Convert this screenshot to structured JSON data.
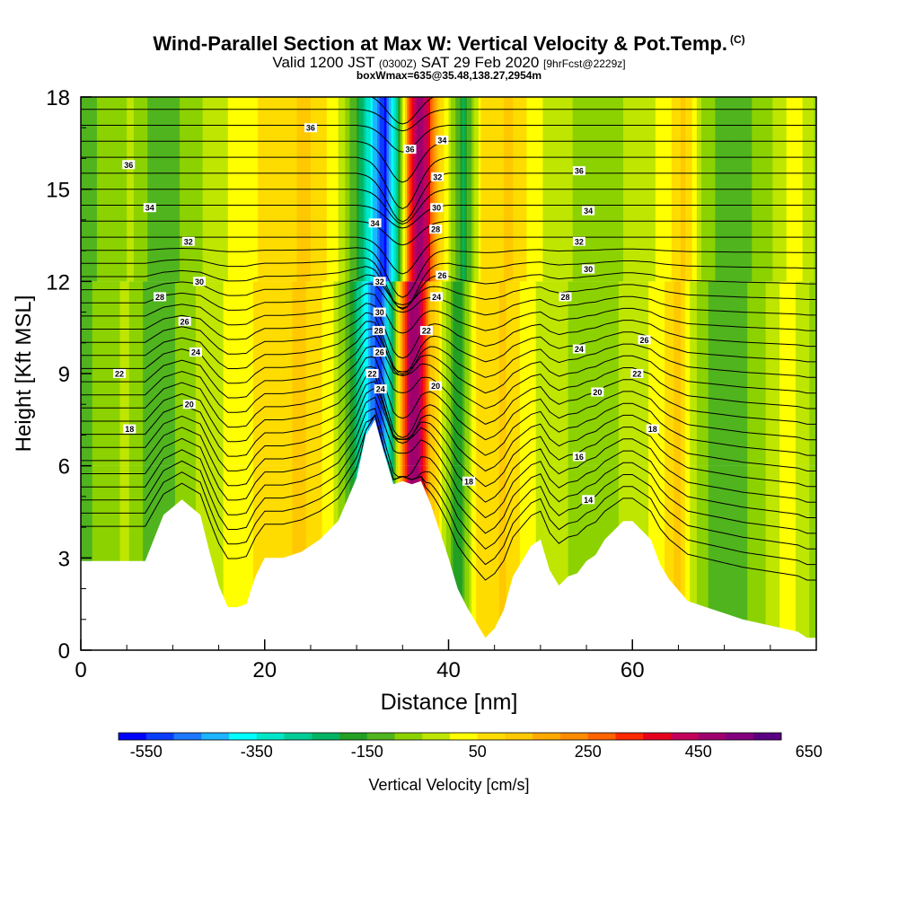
{
  "header": {
    "title": "Wind-Parallel Section at Max W: Vertical Velocity & Pot.Temp.",
    "title_tag": "(C)",
    "valid_prefix": "Valid 1200 JST",
    "valid_utc": "(0300Z)",
    "valid_date": "SAT 29 Feb 2020",
    "forecast": "[9hrFcst@2229z]",
    "box_info": "boxWmax=635@35.48,138.27,2954m"
  },
  "chart_data": {
    "type": "heatmap",
    "xlabel": "Distance [nm]",
    "ylabel": "Height [Kft MSL]",
    "xlim": [
      0,
      80
    ],
    "ylim": [
      0,
      18
    ],
    "x_ticks": [
      "0",
      "20",
      "40",
      "60"
    ],
    "y_ticks": [
      "0",
      "3",
      "6",
      "9",
      "12",
      "15",
      "18"
    ],
    "colorbar": {
      "label": "Vertical Velocity [cm/s]",
      "tick_labels": [
        "-550",
        "-350",
        "-150",
        "50",
        "250",
        "450",
        "650"
      ],
      "colors": [
        "#0000ff",
        "#0a3cff",
        "#1e78ff",
        "#1eb4ff",
        "#00ffff",
        "#00e6c8",
        "#00cd96",
        "#00b464",
        "#23a023",
        "#50b41e",
        "#8cd200",
        "#bee600",
        "#ffff00",
        "#ffdc00",
        "#ffc800",
        "#ffaa00",
        "#ff8c00",
        "#ff6400",
        "#ff2800",
        "#e6001e",
        "#c3005a",
        "#a0006e",
        "#82007d",
        "#5a0082"
      ]
    },
    "terrain_profile": {
      "distance_nm": [
        0,
        7,
        9,
        11,
        13,
        14,
        15,
        16,
        17,
        18,
        19,
        20,
        22,
        24,
        26,
        28,
        30,
        31,
        32,
        33,
        34,
        35,
        36,
        37,
        38,
        39,
        40,
        41,
        42,
        43,
        44,
        45,
        46,
        47,
        48,
        49,
        50,
        51,
        52,
        53,
        54,
        55,
        56,
        57,
        58,
        59,
        60,
        61,
        62,
        63,
        64,
        66,
        68,
        70,
        72,
        75,
        78,
        79,
        80
      ],
      "height_kft": [
        2.9,
        2.9,
        4.4,
        4.9,
        4.4,
        3.2,
        2.1,
        1.4,
        1.4,
        1.5,
        2.4,
        3.0,
        3.0,
        3.2,
        3.6,
        4.2,
        5.6,
        7.0,
        7.5,
        6.4,
        5.4,
        5.5,
        5.4,
        5.5,
        4.8,
        3.9,
        3.0,
        2.0,
        1.4,
        0.9,
        0.4,
        0.7,
        1.3,
        2.4,
        2.9,
        3.4,
        3.6,
        2.6,
        2.1,
        2.4,
        2.5,
        2.9,
        3.1,
        3.6,
        3.9,
        4.2,
        4.2,
        3.9,
        3.6,
        2.8,
        2.3,
        1.6,
        1.4,
        1.2,
        1.0,
        0.8,
        0.6,
        0.4,
        0.4
      ]
    },
    "velocity_bands": [
      {
        "x": 0,
        "w": -120
      },
      {
        "x": 5,
        "w": -40
      },
      {
        "x": 8,
        "w": -150
      },
      {
        "x": 12,
        "w": -60
      },
      {
        "x": 16,
        "w": 10
      },
      {
        "x": 20,
        "w": 70
      },
      {
        "x": 24,
        "w": 110
      },
      {
        "x": 27,
        "w": 30
      },
      {
        "x": 29.5,
        "w": -160
      },
      {
        "x": 31,
        "w": -380
      },
      {
        "x": 32.5,
        "w": -560
      },
      {
        "x": 34,
        "w": -200
      },
      {
        "x": 35,
        "w": 250
      },
      {
        "x": 36,
        "w": 500
      },
      {
        "x": 37,
        "w": 430
      },
      {
        "x": 38,
        "w": 160
      },
      {
        "x": 39.5,
        "w": -20
      },
      {
        "x": 41,
        "w": -210
      },
      {
        "x": 43,
        "w": 60
      },
      {
        "x": 46,
        "w": 110
      },
      {
        "x": 49,
        "w": 10
      },
      {
        "x": 52,
        "w": -40
      },
      {
        "x": 56,
        "w": -80
      },
      {
        "x": 60,
        "w": -30
      },
      {
        "x": 63,
        "w": 20
      },
      {
        "x": 65,
        "w": 120
      },
      {
        "x": 67,
        "w": -60
      },
      {
        "x": 70,
        "w": -150
      },
      {
        "x": 74,
        "w": -70
      },
      {
        "x": 77,
        "w": 30
      },
      {
        "x": 80,
        "w": -80
      }
    ],
    "isentrope_labels": [
      {
        "x": 25,
        "y": 17.0,
        "t": "36"
      },
      {
        "x": 5.2,
        "y": 15.8,
        "t": "36"
      },
      {
        "x": 7.5,
        "y": 14.4,
        "t": "34"
      },
      {
        "x": 11.7,
        "y": 13.3,
        "t": "32"
      },
      {
        "x": 12.9,
        "y": 12.0,
        "t": "30"
      },
      {
        "x": 8.6,
        "y": 11.5,
        "t": "28"
      },
      {
        "x": 11.3,
        "y": 10.7,
        "t": "26"
      },
      {
        "x": 12.5,
        "y": 9.7,
        "t": "24"
      },
      {
        "x": 4.2,
        "y": 9.0,
        "t": "22"
      },
      {
        "x": 11.8,
        "y": 8.0,
        "t": "20"
      },
      {
        "x": 5.3,
        "y": 7.2,
        "t": "18"
      },
      {
        "x": 32,
        "y": 13.9,
        "t": "34"
      },
      {
        "x": 32.5,
        "y": 12.0,
        "t": "32"
      },
      {
        "x": 32.5,
        "y": 11.0,
        "t": "30"
      },
      {
        "x": 32.4,
        "y": 10.4,
        "t": "28"
      },
      {
        "x": 32.5,
        "y": 9.7,
        "t": "26"
      },
      {
        "x": 31.7,
        "y": 9.0,
        "t": "22"
      },
      {
        "x": 32.6,
        "y": 8.5,
        "t": "24"
      },
      {
        "x": 35.8,
        "y": 16.3,
        "t": "36"
      },
      {
        "x": 39.3,
        "y": 16.6,
        "t": "34"
      },
      {
        "x": 38.8,
        "y": 15.4,
        "t": "32"
      },
      {
        "x": 38.7,
        "y": 14.4,
        "t": "30"
      },
      {
        "x": 38.6,
        "y": 13.7,
        "t": "28"
      },
      {
        "x": 39.3,
        "y": 12.2,
        "t": "26"
      },
      {
        "x": 38.7,
        "y": 11.5,
        "t": "24"
      },
      {
        "x": 37.6,
        "y": 10.4,
        "t": "22"
      },
      {
        "x": 38.6,
        "y": 8.6,
        "t": "20"
      },
      {
        "x": 42.2,
        "y": 5.5,
        "t": "18"
      },
      {
        "x": 54.2,
        "y": 15.6,
        "t": "36"
      },
      {
        "x": 55.2,
        "y": 14.3,
        "t": "34"
      },
      {
        "x": 54.2,
        "y": 13.3,
        "t": "32"
      },
      {
        "x": 55.2,
        "y": 12.4,
        "t": "30"
      },
      {
        "x": 52.7,
        "y": 11.5,
        "t": "28"
      },
      {
        "x": 54.2,
        "y": 9.8,
        "t": "24"
      },
      {
        "x": 61.3,
        "y": 10.1,
        "t": "26"
      },
      {
        "x": 60.5,
        "y": 9.0,
        "t": "22"
      },
      {
        "x": 56.2,
        "y": 8.4,
        "t": "20"
      },
      {
        "x": 62.2,
        "y": 7.2,
        "t": "18"
      },
      {
        "x": 54.2,
        "y": 6.3,
        "t": "16"
      },
      {
        "x": 55.2,
        "y": 4.9,
        "t": "14"
      }
    ]
  }
}
